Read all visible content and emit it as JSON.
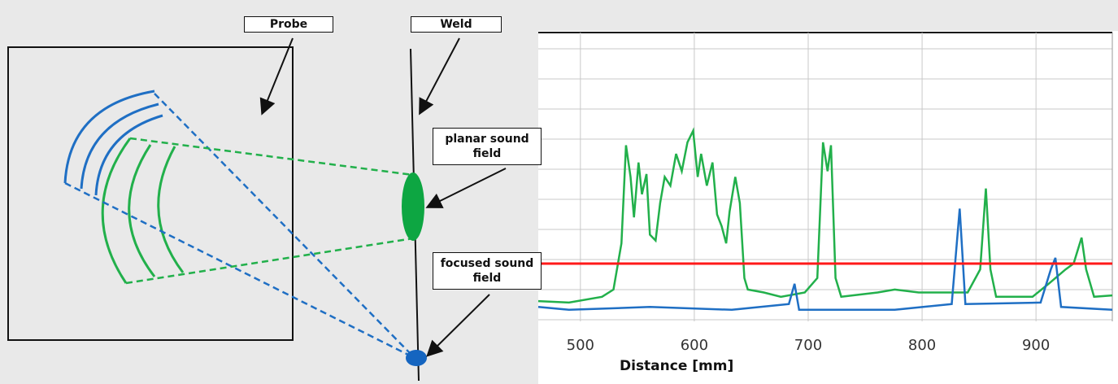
{
  "labels": {
    "probe": "Probe",
    "weld": "Weld",
    "planar": "planar sound field",
    "focused": "focused sound field"
  },
  "chart_data": {
    "type": "line",
    "x_label": "Distance [mm]",
    "xlim": [
      463,
      967
    ],
    "ylim": [
      0,
      100
    ],
    "xticks": [
      500,
      600,
      700,
      800,
      900
    ],
    "grid": true,
    "threshold": {
      "value": 20,
      "color": "#ff1a1a"
    },
    "series": [
      {
        "color": "#22b04b",
        "x": [
          463,
          490,
          519,
          529,
          536,
          540,
          544,
          547,
          551,
          554,
          558,
          561,
          566,
          570,
          574,
          579,
          584,
          589,
          594,
          599,
          603,
          606,
          611,
          616,
          620,
          624,
          628,
          631,
          636,
          640,
          644,
          647,
          661,
          676,
          697,
          708,
          713,
          717,
          720,
          724,
          729,
          761,
          776,
          797,
          822,
          840,
          851,
          856,
          860,
          865,
          897,
          911,
          926,
          933,
          940,
          944,
          951,
          967
        ],
        "values": [
          7,
          6.5,
          8.5,
          11,
          27,
          61,
          50,
          36,
          55,
          44,
          51,
          30,
          28,
          41,
          50,
          47,
          58,
          52,
          62,
          66,
          50,
          58,
          47,
          55,
          37,
          33,
          27,
          38,
          50,
          41,
          15,
          11,
          10,
          8.5,
          10,
          15,
          62,
          52,
          61,
          15,
          8.5,
          10,
          11,
          10,
          10,
          10,
          18,
          46,
          18,
          8.5,
          8.5,
          13,
          18,
          20,
          29,
          18,
          8.5,
          9
        ]
      },
      {
        "color": "#1f6fc4",
        "x": [
          463,
          490,
          561,
          633,
          683,
          688,
          692,
          776,
          826,
          833,
          838,
          904,
          913,
          917,
          922,
          967
        ],
        "values": [
          5,
          4,
          5,
          4,
          6,
          13,
          4,
          4,
          6,
          39,
          6,
          6.5,
          18,
          22,
          5,
          4
        ]
      }
    ]
  }
}
